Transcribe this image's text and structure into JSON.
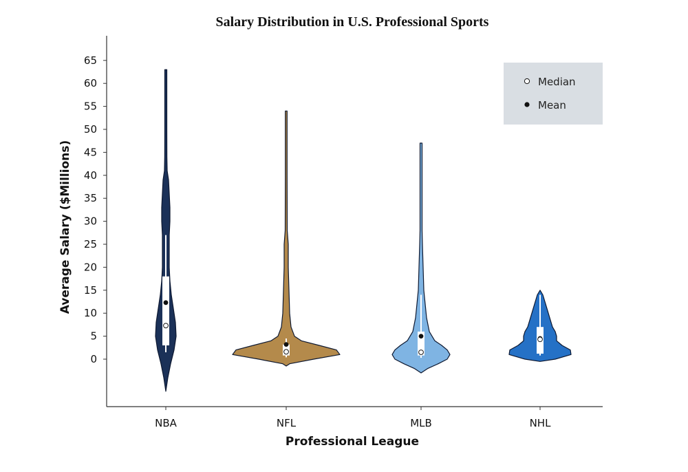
{
  "chart_data": {
    "type": "violin",
    "title": "Salary Distribution in U.S. Professional Sports",
    "xlabel": "Professional League",
    "ylabel": "Average Salary ($Millions)",
    "ylim": [
      -10,
      66
    ],
    "yticks": [
      0,
      5,
      10,
      15,
      20,
      25,
      30,
      35,
      40,
      45,
      50,
      55,
      60,
      65
    ],
    "categories": [
      "NBA",
      "NFL",
      "MLB",
      "NHL"
    ],
    "legend": {
      "position": "top-right",
      "entries": [
        {
          "label": "Median",
          "marker": "open-circle"
        },
        {
          "label": "Mean",
          "marker": "filled-circle"
        }
      ]
    },
    "series": [
      {
        "league": "NBA",
        "color": "#1b3158",
        "min": -7,
        "max": 63,
        "q1": 3,
        "q3": 18,
        "whisker_low": 1.5,
        "whisker_high": 27,
        "median": 7.3,
        "mean": 12.3,
        "density": [
          [
            -7,
            0
          ],
          [
            -4,
            3
          ],
          [
            -1,
            7
          ],
          [
            2,
            12
          ],
          [
            5,
            15
          ],
          [
            8,
            14
          ],
          [
            11,
            11
          ],
          [
            14,
            8
          ],
          [
            17,
            6
          ],
          [
            20,
            5
          ],
          [
            24,
            5
          ],
          [
            27,
            5
          ],
          [
            30,
            6
          ],
          [
            33,
            6
          ],
          [
            36,
            5
          ],
          [
            39,
            4
          ],
          [
            41,
            2
          ],
          [
            44,
            1.6
          ],
          [
            50,
            1.5
          ],
          [
            63,
            1.5
          ]
        ]
      },
      {
        "league": "NFL",
        "color": "#b48a4b",
        "min": -1.5,
        "max": 54,
        "q1": 0.8,
        "q3": 3.2,
        "whisker_low": 0.4,
        "whisker_high": 4.5,
        "median": 1.6,
        "mean": 3.2,
        "density": [
          [
            -1.5,
            0
          ],
          [
            -1,
            5
          ],
          [
            0,
            40
          ],
          [
            1,
            78
          ],
          [
            2,
            73
          ],
          [
            3,
            48
          ],
          [
            4,
            22
          ],
          [
            5,
            12
          ],
          [
            7,
            7
          ],
          [
            10,
            5
          ],
          [
            15,
            4
          ],
          [
            20,
            3
          ],
          [
            25,
            3
          ],
          [
            28,
            1.5
          ],
          [
            40,
            1.3
          ],
          [
            54,
            1.3
          ]
        ]
      },
      {
        "league": "MLB",
        "color": "#7fb4e3",
        "min": -3,
        "max": 47,
        "q1": 0.8,
        "q3": 6,
        "whisker_low": 0.3,
        "whisker_high": 14,
        "median": 1.5,
        "mean": 5.0,
        "density": [
          [
            -3,
            0
          ],
          [
            -2,
            10
          ],
          [
            -1,
            25
          ],
          [
            0,
            38
          ],
          [
            1,
            42
          ],
          [
            2,
            38
          ],
          [
            3,
            30
          ],
          [
            4,
            20
          ],
          [
            6,
            12
          ],
          [
            9,
            8
          ],
          [
            12,
            6
          ],
          [
            15,
            4
          ],
          [
            20,
            3
          ],
          [
            25,
            2
          ],
          [
            28,
            1.5
          ],
          [
            35,
            1.5
          ],
          [
            47,
            1.5
          ]
        ]
      },
      {
        "league": "NHL",
        "color": "#2571c6",
        "min": -0.5,
        "max": 15,
        "q1": 1.2,
        "q3": 7,
        "whisker_low": 0.8,
        "whisker_high": 14,
        "median": 4.3,
        "mean": 4.5,
        "density": [
          [
            -0.5,
            0
          ],
          [
            0,
            22
          ],
          [
            1,
            45
          ],
          [
            2,
            44
          ],
          [
            3,
            32
          ],
          [
            4,
            24
          ],
          [
            5,
            24
          ],
          [
            6,
            22
          ],
          [
            7,
            18
          ],
          [
            8,
            16
          ],
          [
            10,
            12
          ],
          [
            12,
            8
          ],
          [
            14,
            4
          ],
          [
            15,
            0
          ]
        ]
      }
    ]
  }
}
